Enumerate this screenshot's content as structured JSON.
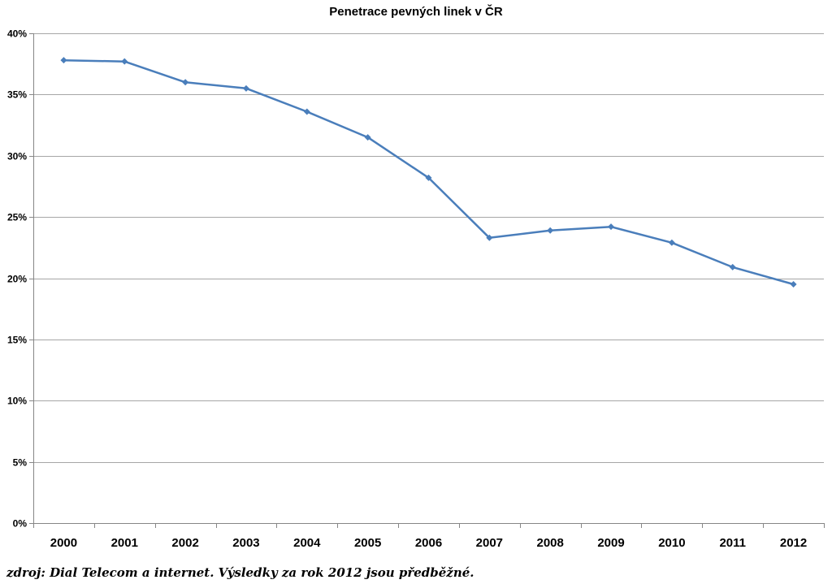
{
  "chart_data": {
    "type": "line",
    "title": "Penetrace pevných linek v ČR",
    "xlabel": "",
    "ylabel": "",
    "categories": [
      "2000",
      "2001",
      "2002",
      "2003",
      "2004",
      "2005",
      "2006",
      "2007",
      "2008",
      "2009",
      "2010",
      "2011",
      "2012"
    ],
    "series": [
      {
        "values": [
          37.8,
          37.7,
          36.0,
          35.5,
          33.6,
          31.5,
          28.2,
          23.3,
          23.9,
          24.2,
          22.9,
          20.9,
          19.5
        ]
      }
    ],
    "ylim": [
      0,
      40
    ],
    "yticks": [
      0,
      5,
      10,
      15,
      20,
      25,
      30,
      35,
      40
    ],
    "ytick_labels": [
      "0%",
      "5%",
      "10%",
      "15%",
      "20%",
      "25%",
      "30%",
      "35%",
      "40%"
    ],
    "grid": true,
    "legend": "none",
    "colors": {
      "line": "#4a7ebb",
      "grid": "#a6a6a6",
      "axis": "#868686"
    }
  },
  "source_note": "zdroj: Dial Telecom a internet. Výsledky za rok 2012 jsou předběžné."
}
